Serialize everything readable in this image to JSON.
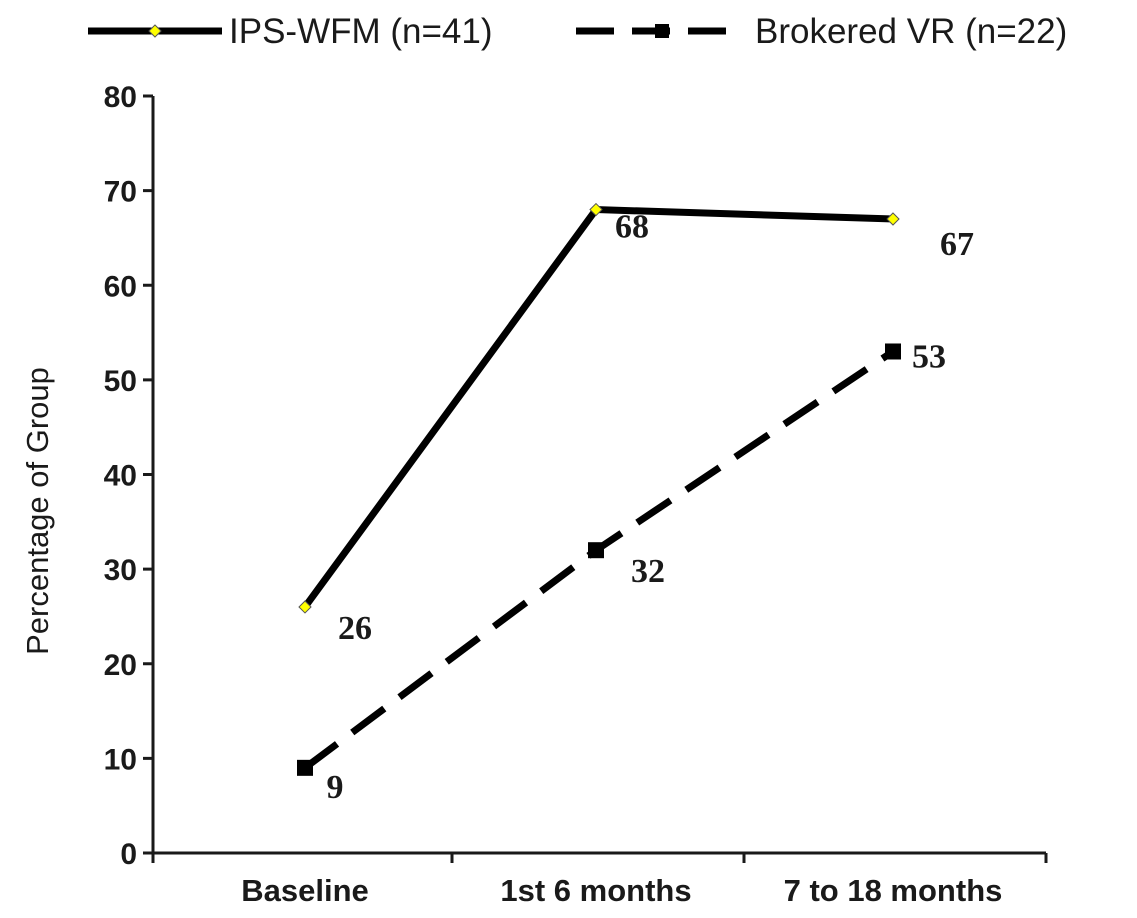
{
  "chart_data": {
    "type": "line",
    "categories": [
      "Baseline",
      "1st 6 months",
      "7 to 18 months"
    ],
    "series": [
      {
        "name": "IPS-WFM (n=41)",
        "values": [
          26,
          68,
          67
        ],
        "data_labels": [
          "26",
          "68",
          "67"
        ],
        "line_style": "solid",
        "line_color": "#000000",
        "marker": "diamond",
        "marker_color": "#ffff00"
      },
      {
        "name": "Brokered VR (n=22)",
        "values": [
          9,
          32,
          53
        ],
        "data_labels": [
          "9",
          "32",
          "53"
        ],
        "line_style": "dashed",
        "line_color": "#000000",
        "marker": "square",
        "marker_color": "#000000"
      }
    ],
    "ylabel": "Percentage of Group",
    "xlabel": "",
    "ylim": [
      0,
      80
    ],
    "yticks": [
      0,
      10,
      20,
      30,
      40,
      50,
      60,
      70,
      80
    ],
    "ytick_labels": [
      "0",
      "10",
      "20",
      "30",
      "40",
      "50",
      "60",
      "70",
      "80"
    ],
    "grid": false,
    "legend_position": "top"
  }
}
